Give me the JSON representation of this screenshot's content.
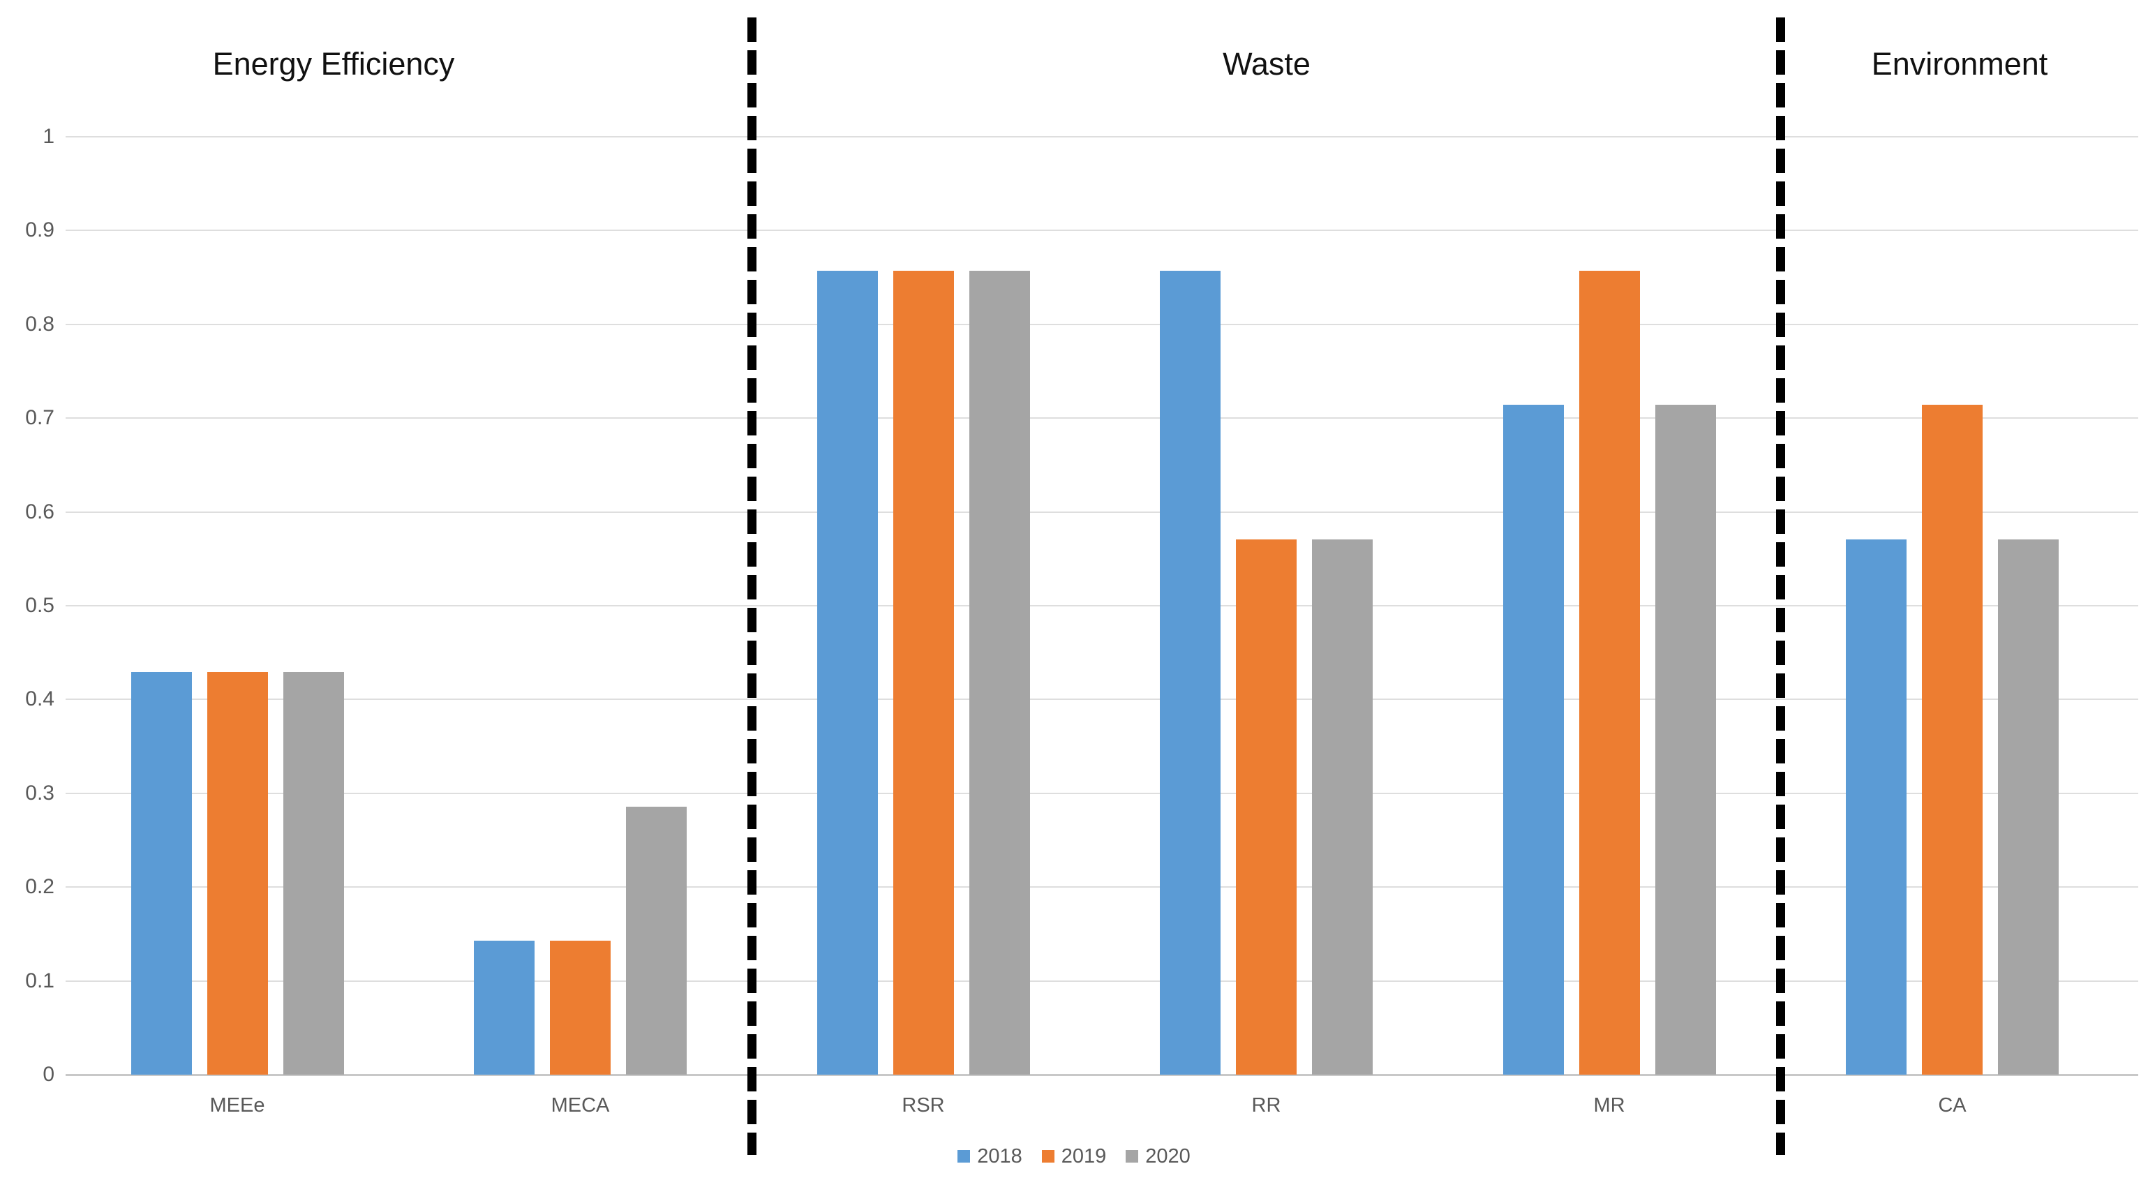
{
  "chart_data": {
    "type": "bar",
    "sections": [
      {
        "title": "Energy Efficiency",
        "categories": [
          "MEEe",
          "MECA"
        ]
      },
      {
        "title": "Waste",
        "categories": [
          "RSR",
          "RR",
          "MR"
        ]
      },
      {
        "title": "Environment",
        "categories": [
          "CA"
        ]
      }
    ],
    "categories": [
      "MEEe",
      "MECA",
      "RSR",
      "RR",
      "MR",
      "CA"
    ],
    "series": [
      {
        "name": "2018",
        "color": "#5B9BD5",
        "values": [
          0.429,
          0.143,
          0.857,
          0.857,
          0.714,
          0.571
        ]
      },
      {
        "name": "2019",
        "color": "#ED7D31",
        "values": [
          0.429,
          0.143,
          0.857,
          0.571,
          0.857,
          0.714
        ]
      },
      {
        "name": "2020",
        "color": "#A5A5A5",
        "values": [
          0.429,
          0.286,
          0.857,
          0.571,
          0.714,
          0.571
        ]
      }
    ],
    "y_axis": {
      "min": 0,
      "max": 1,
      "tick_step": 0.1,
      "tick_labels": [
        "0",
        "0.1",
        "0.2",
        "0.3",
        "0.4",
        "0.5",
        "0.6",
        "0.7",
        "0.8",
        "0.9",
        "1"
      ]
    },
    "grid": true,
    "legend_position": "bottom",
    "legend_labels": [
      "2018",
      "2019",
      "2020"
    ],
    "appearance": {
      "gridline_color": "#DEDEDE",
      "axis_line_color": "#C8C8C8",
      "tick_label_color": "#595959",
      "section_title_color": "#111111",
      "separator_color": "#000000",
      "separator_style": "dashed"
    }
  }
}
